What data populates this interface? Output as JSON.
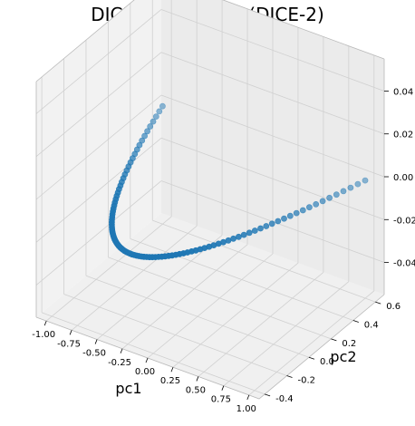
{
  "chart_data": {
    "type": "scatter",
    "projection": "3d",
    "title": "DICE Embedding (DICE-2)",
    "xlabel": "pc1",
    "ylabel": "pc2",
    "zlabel": "",
    "xlim": [
      -1.1,
      1.1
    ],
    "ylim": [
      -0.45,
      0.68
    ],
    "zlim": [
      -0.055,
      0.055
    ],
    "x_ticks": [
      "-1.00",
      "-0.75",
      "-0.50",
      "-0.25",
      "0.00",
      "0.25",
      "0.50",
      "0.75",
      "1.00"
    ],
    "y_ticks": [
      "-0.4",
      "-0.2",
      "0.0",
      "0.2",
      "0.4",
      "0.6"
    ],
    "z_ticks": [
      "-0.04",
      "-0.02",
      "0.00",
      "0.02",
      "0.04"
    ],
    "grid": true,
    "marker_color": "#1f77b4",
    "series": [
      {
        "x_from": -1.0,
        "x_to": 1.0,
        "count": 100,
        "y_formula": "pc2 = 0.6*(2*pc1^2 - 1)",
        "z_value": 0.0
      }
    ]
  }
}
